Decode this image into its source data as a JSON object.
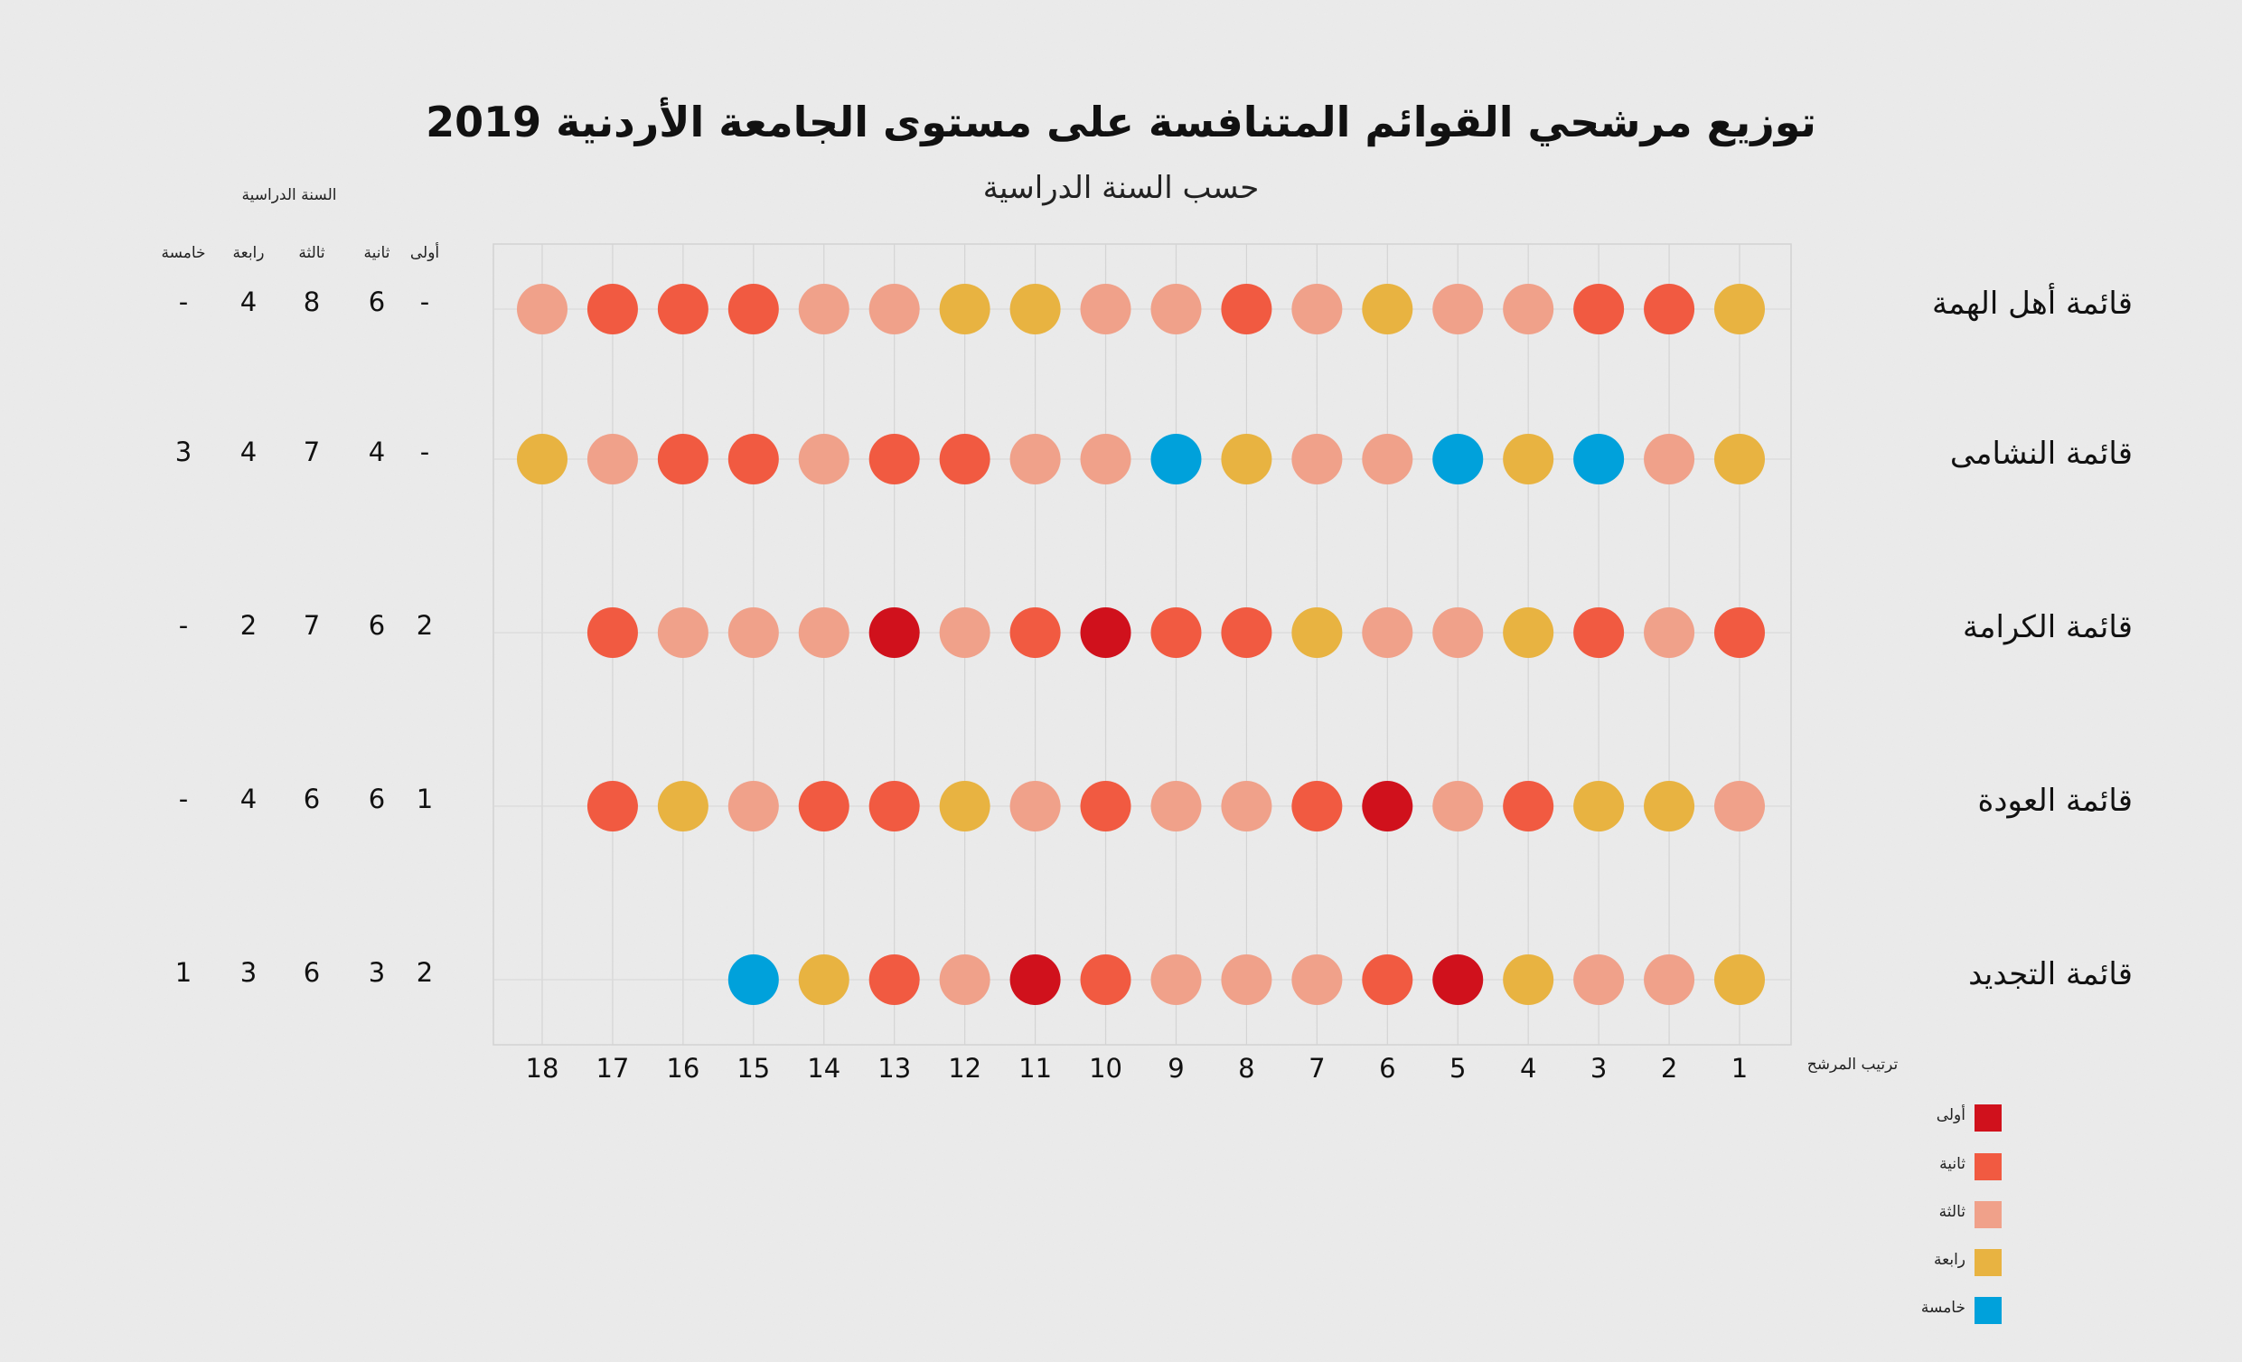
{
  "title": "توزيع مرشحي القوائم المتنافسة على مستوى الجامعة الأردنية 2019",
  "subtitle": "حسب السنة الدراسية",
  "colors": {
    "أولى": "#d0111c",
    "ثانية": "#f15a41",
    "ثالثة": "#f0a18a",
    "رابعة": "#e8b341",
    "خامسة": "#00a1db"
  },
  "legend": {
    "title": "ترتيب المرشح",
    "items": [
      {
        "label": "أولى",
        "color": "#d0111c"
      },
      {
        "label": "ثانية",
        "color": "#f15a41"
      },
      {
        "label": "ثالثة",
        "color": "#f0a18a"
      },
      {
        "label": "رابعة",
        "color": "#e8b341"
      },
      {
        "label": "خامسة",
        "color": "#00a1db"
      }
    ]
  },
  "year_table": {
    "title": "السنة الدراسية",
    "headers": [
      "أولى",
      "ثانية",
      "ثالثة",
      "رابعة",
      "خامسة"
    ],
    "rows": [
      [
        "-",
        "6",
        "8",
        "4",
        "-"
      ],
      [
        "-",
        "4",
        "7",
        "4",
        "3"
      ],
      [
        "2",
        "6",
        "7",
        "2",
        "-"
      ],
      [
        "1",
        "6",
        "6",
        "4",
        "-"
      ],
      [
        "2",
        "3",
        "6",
        "3",
        "1"
      ]
    ]
  },
  "chart_data": {
    "type": "scatter",
    "title": "توزيع مرشحي القوائم المتنافسة على مستوى الجامعة الأردنية 2019",
    "subtitle": "حسب السنة الدراسية",
    "xlabel": "ترتيب المرشح",
    "x": [
      1,
      2,
      3,
      4,
      5,
      6,
      7,
      8,
      9,
      10,
      11,
      12,
      13,
      14,
      15,
      16,
      17,
      18
    ],
    "rows": [
      {
        "name": "قائمة أهل الهمة",
        "candidates": [
          "رابعة",
          "ثانية",
          "ثانية",
          "ثالثة",
          "ثالثة",
          "رابعة",
          "ثالثة",
          "ثانية",
          "ثالثة",
          "ثالثة",
          "رابعة",
          "رابعة",
          "ثالثة",
          "ثالثة",
          "ثانية",
          "ثانية",
          "ثانية",
          "ثالثة"
        ]
      },
      {
        "name": "قائمة النشامى",
        "candidates": [
          "رابعة",
          "ثالثة",
          "خامسة",
          "رابعة",
          "خامسة",
          "ثالثة",
          "ثالثة",
          "رابعة",
          "خامسة",
          "ثالثة",
          "ثالثة",
          "ثانية",
          "ثانية",
          "ثالثة",
          "ثانية",
          "ثانية",
          "ثالثة",
          "رابعة"
        ]
      },
      {
        "name": "قائمة الكرامة",
        "candidates": [
          "ثانية",
          "ثالثة",
          "ثانية",
          "رابعة",
          "ثالثة",
          "ثالثة",
          "رابعة",
          "ثانية",
          "ثانية",
          "أولى",
          "ثانية",
          "ثالثة",
          "أولى",
          "ثالثة",
          "ثالثة",
          "ثالثة",
          "ثانية"
        ]
      },
      {
        "name": "قائمة العودة",
        "candidates": [
          "ثالثة",
          "رابعة",
          "رابعة",
          "ثانية",
          "ثالثة",
          "أولى",
          "ثانية",
          "ثالثة",
          "ثالثة",
          "ثانية",
          "ثالثة",
          "رابعة",
          "ثانية",
          "ثانية",
          "ثالثة",
          "رابعة",
          "ثانية"
        ]
      },
      {
        "name": "قائمة التجديد",
        "candidates": [
          "رابعة",
          "ثالثة",
          "ثالثة",
          "رابعة",
          "أولى",
          "ثانية",
          "ثالثة",
          "ثالثة",
          "ثالثة",
          "ثانية",
          "أولى",
          "ثالثة",
          "ثانية",
          "رابعة",
          "خامسة"
        ]
      }
    ]
  }
}
